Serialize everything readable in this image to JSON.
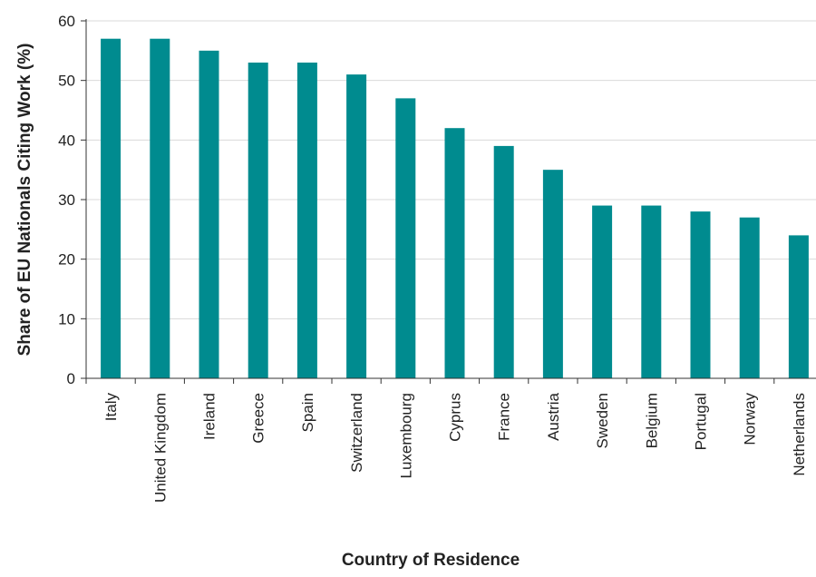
{
  "chart_data": {
    "type": "bar",
    "title": "",
    "xlabel": "Country of Residence",
    "ylabel": "Share of EU Nationals Citing Work (%)",
    "categories": [
      "Italy",
      "United Kingdom",
      "Ireland",
      "Greece",
      "Spain",
      "Switzerland",
      "Luxembourg",
      "Cyprus",
      "France",
      "Austria",
      "Sweden",
      "Belgium",
      "Portugal",
      "Norway",
      "Netherlands"
    ],
    "values": [
      57,
      57,
      55,
      53,
      53,
      51,
      47,
      42,
      39,
      35,
      29,
      29,
      28,
      27,
      24
    ],
    "ylim": [
      0,
      60
    ],
    "yticks": [
      "0",
      "10",
      "20",
      "30",
      "40",
      "50",
      "60"
    ],
    "grid": true,
    "legend": "none",
    "bar_color": "#008B8F",
    "grid_color": "#d9d9d9",
    "axis_color": "#333333"
  }
}
